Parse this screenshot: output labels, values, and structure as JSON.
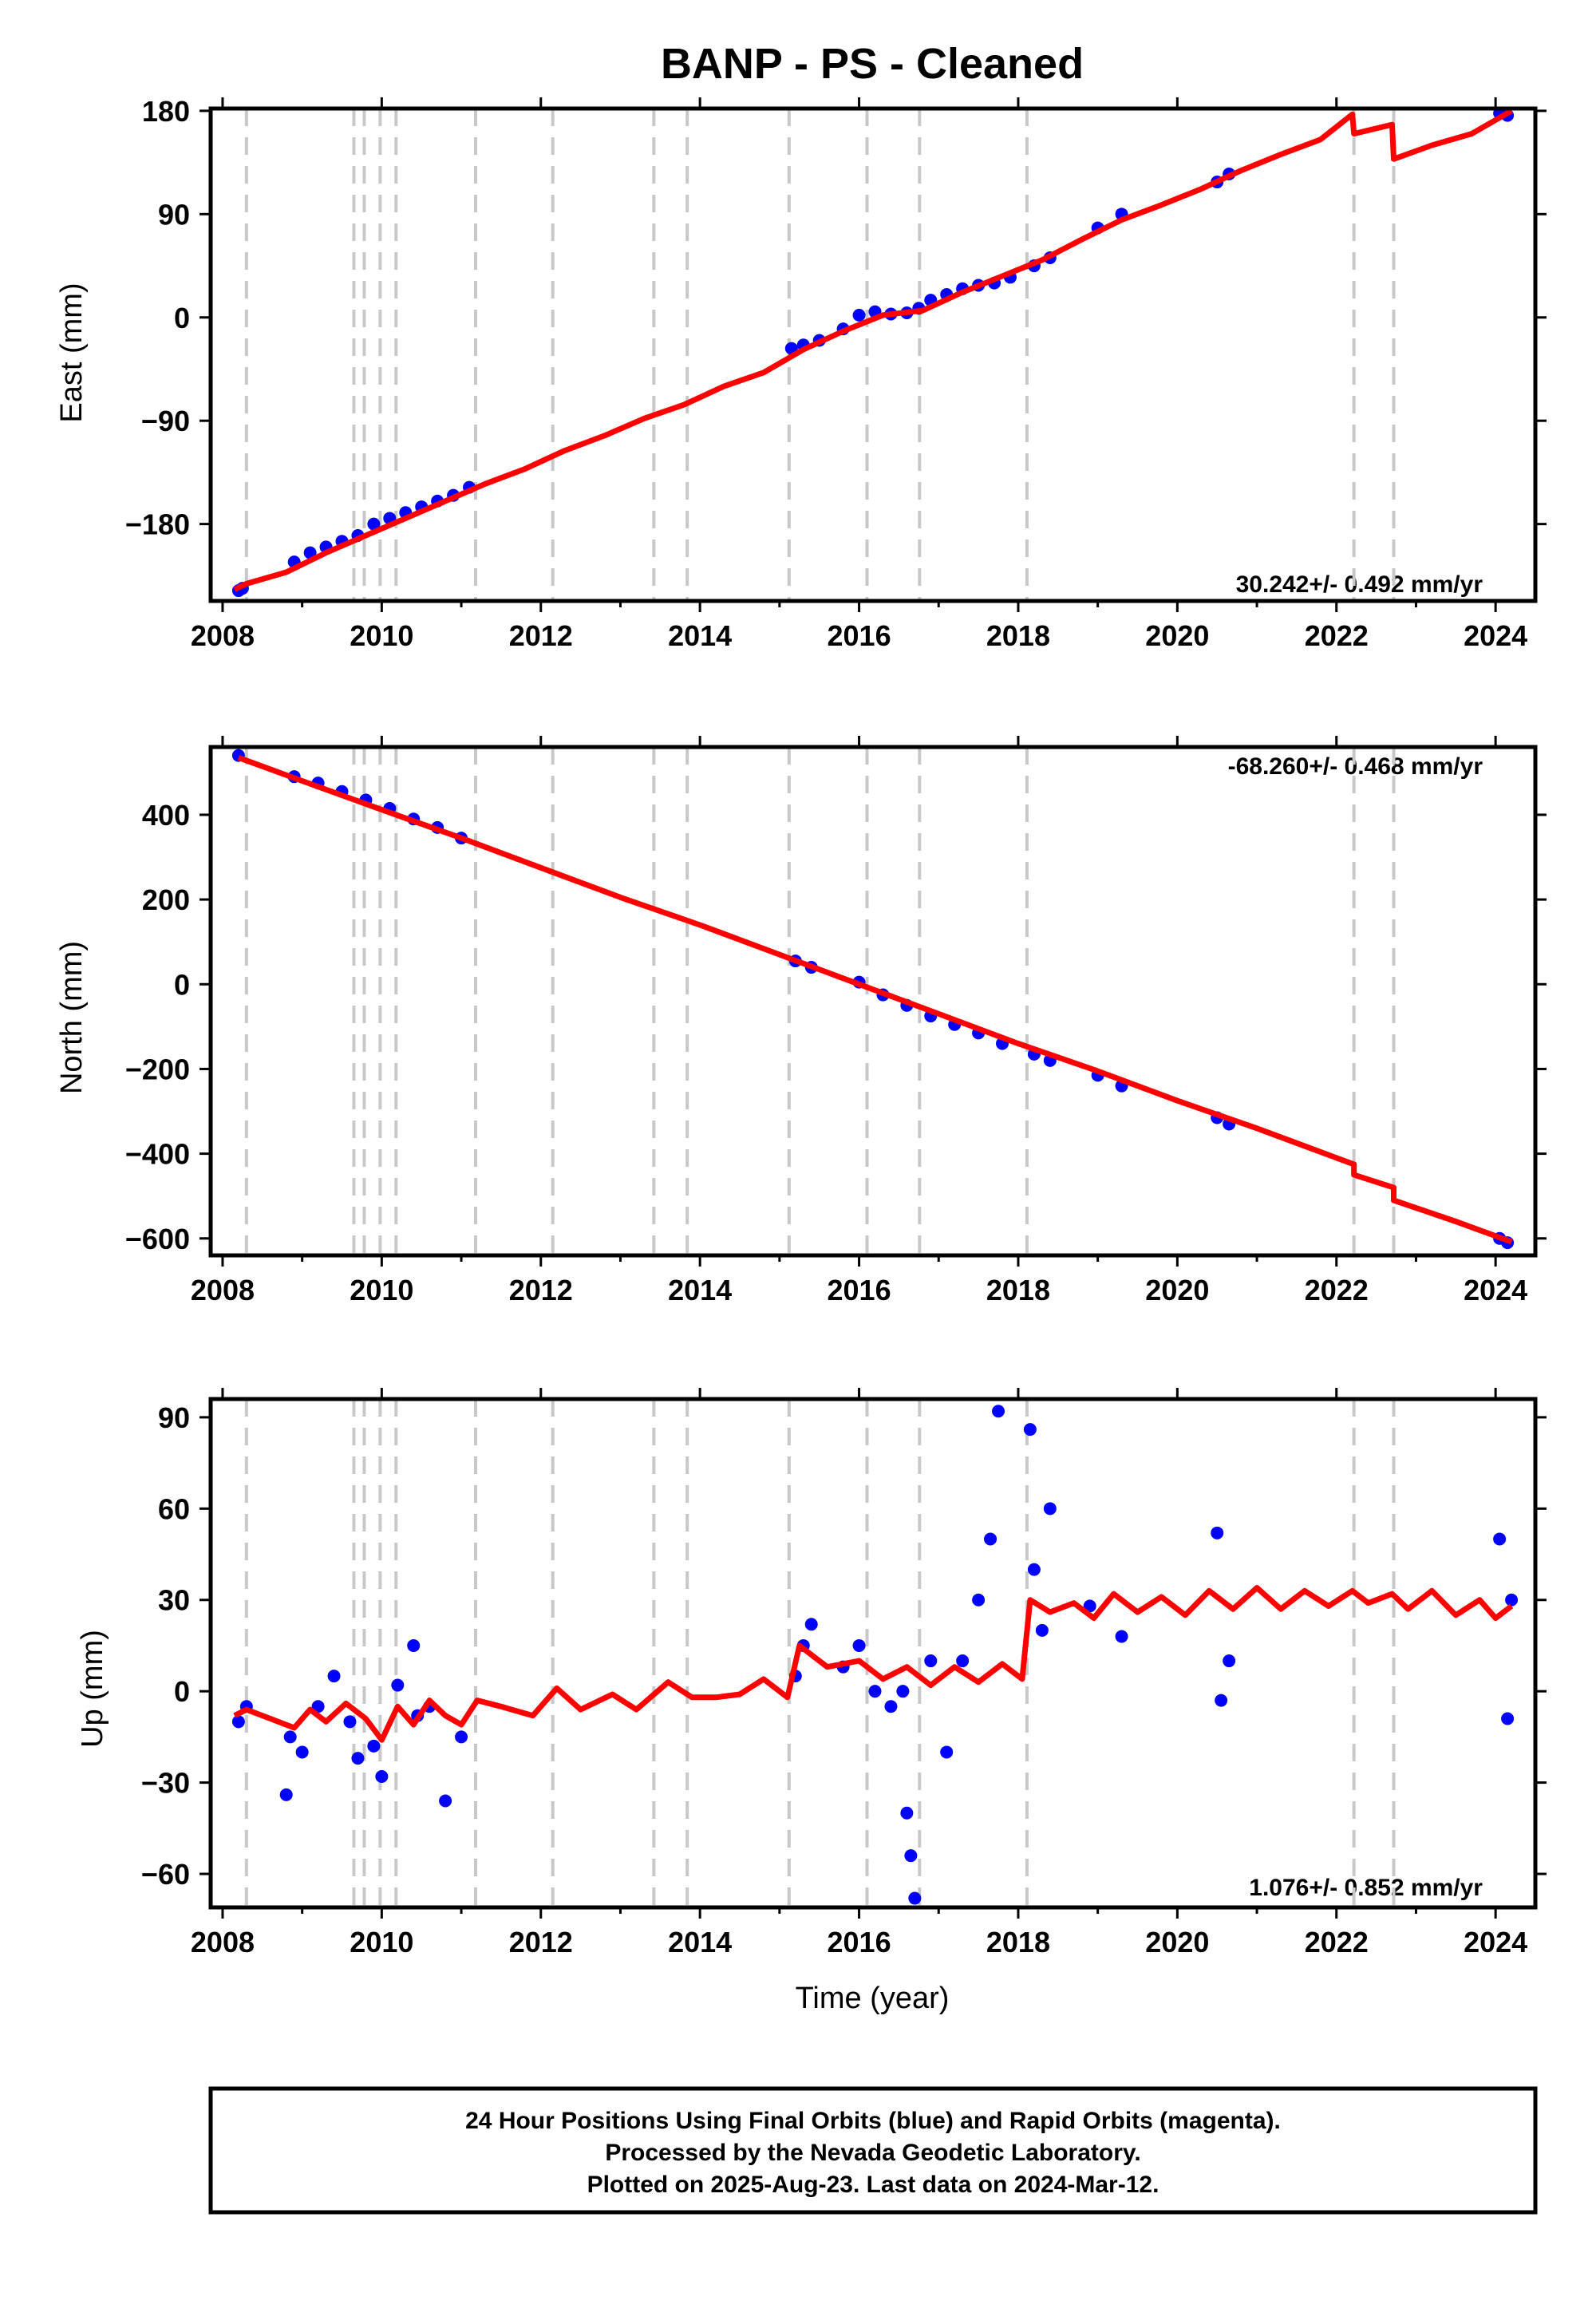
{
  "title": "BANP  - PS - Cleaned",
  "time_axis_label": "Time (year)",
  "footer": {
    "line1": "24 Hour Positions Using Final Orbits (blue) and Rapid Orbits (magenta).",
    "line2": "Processed by the Nevada Geodetic Laboratory.",
    "line3": "Plotted on 2025-Aug-23. Last data on 2024-Mar-12."
  },
  "colors": {
    "data": "#0000ff",
    "fit": "#ff0000",
    "breaks": "#c8c8c8"
  },
  "chart_data": [
    {
      "type": "scatter",
      "ylabel": "East (mm)",
      "rate_text": "30.242+/- 0.492 mm/yr",
      "xlim": [
        2007.85,
        2024.5
      ],
      "ylim": [
        -247,
        182
      ],
      "xticks": [
        2008,
        2010,
        2012,
        2014,
        2016,
        2018,
        2020,
        2022,
        2024
      ],
      "yticks": [
        -180,
        -90,
        0,
        90,
        180
      ],
      "ytick_labels": [
        "−180",
        "−90",
        "0",
        "90",
        "180"
      ],
      "breaks": [
        2008.3,
        2009.65,
        2009.78,
        2009.98,
        2010.18,
        2011.18,
        2012.15,
        2013.42,
        2013.84,
        2015.12,
        2016.1,
        2016.76,
        2018.11,
        2022.22,
        2022.72
      ],
      "series": [
        {
          "kind": "scatter",
          "x": [
            2008.2,
            2008.25,
            2008.9,
            2009.1,
            2009.3,
            2009.5,
            2009.7,
            2009.9,
            2010.1,
            2010.3,
            2010.5,
            2010.7,
            2010.9,
            2011.1,
            2015.15,
            2015.3,
            2015.5,
            2015.8,
            2016.0,
            2016.2,
            2016.4,
            2016.6,
            2016.75,
            2016.9,
            2017.1,
            2017.3,
            2017.5,
            2017.7,
            2017.9,
            2018.2,
            2018.4,
            2019.0,
            2019.3,
            2020.5,
            2020.65,
            2024.05,
            2024.15
          ],
          "y": [
            -238,
            -236,
            -213,
            -205,
            -200,
            -195,
            -190,
            -180,
            -175,
            -170,
            -165,
            -160,
            -155,
            -148,
            -27,
            -24,
            -20,
            -10,
            2,
            5,
            3,
            4,
            8,
            15,
            20,
            25,
            28,
            30,
            35,
            45,
            52,
            78,
            90,
            118,
            125,
            178,
            176
          ]
        },
        {
          "kind": "line",
          "x": [
            2008.15,
            2008.3,
            2008.8,
            2009.3,
            2009.8,
            2010.3,
            2010.8,
            2011.3,
            2011.8,
            2012.3,
            2012.8,
            2013.3,
            2013.8,
            2014.3,
            2014.8,
            2015.3,
            2015.8,
            2016.3,
            2016.8,
            2017.3,
            2017.8,
            2018.3,
            2018.8,
            2019.3,
            2019.8,
            2020.3,
            2020.8,
            2021.3,
            2021.8,
            2022.2,
            2022.22,
            2022.7,
            2022.72,
            2023.2,
            2023.7,
            2024.2
          ],
          "y": [
            -237,
            -232,
            -222,
            -205,
            -190,
            -175,
            -160,
            -145,
            -132,
            -116,
            -103,
            -88,
            -76,
            -60,
            -48,
            -28,
            -12,
            2,
            6,
            22,
            36,
            50,
            68,
            85,
            98,
            112,
            128,
            142,
            155,
            177,
            160,
            168,
            138,
            150,
            160,
            180
          ]
        }
      ]
    },
    {
      "type": "scatter",
      "ylabel": "North (mm)",
      "rate_text": "-68.260+/- 0.468 mm/yr",
      "xlim": [
        2007.85,
        2024.5
      ],
      "ylim": [
        -640,
        560
      ],
      "xticks": [
        2008,
        2010,
        2012,
        2014,
        2016,
        2018,
        2020,
        2022,
        2024
      ],
      "yticks": [
        -600,
        -400,
        -200,
        0,
        200,
        400
      ],
      "ytick_labels": [
        "−600",
        "−400",
        "−200",
        "0",
        "200",
        "400"
      ],
      "breaks": [
        2008.3,
        2009.65,
        2009.78,
        2009.98,
        2010.18,
        2011.18,
        2012.15,
        2013.42,
        2013.84,
        2015.12,
        2016.1,
        2016.76,
        2018.11,
        2022.22,
        2022.72
      ],
      "series": [
        {
          "kind": "scatter",
          "x": [
            2008.2,
            2008.9,
            2009.2,
            2009.5,
            2009.8,
            2010.1,
            2010.4,
            2010.7,
            2011.0,
            2015.2,
            2015.4,
            2016.0,
            2016.3,
            2016.6,
            2016.9,
            2017.2,
            2017.5,
            2017.8,
            2018.2,
            2018.4,
            2019.0,
            2019.3,
            2020.5,
            2020.65,
            2024.05,
            2024.15
          ],
          "y": [
            540,
            490,
            475,
            455,
            435,
            415,
            390,
            370,
            345,
            55,
            40,
            5,
            -25,
            -50,
            -75,
            -95,
            -115,
            -140,
            -165,
            -180,
            -215,
            -240,
            -315,
            -330,
            -600,
            -610
          ]
        },
        {
          "kind": "line",
          "x": [
            2008.2,
            2009.0,
            2010.0,
            2011.0,
            2012.0,
            2013.0,
            2014.0,
            2015.0,
            2016.0,
            2017.0,
            2018.0,
            2019.0,
            2020.0,
            2021.0,
            2022.0,
            2022.22,
            2022.22,
            2022.72,
            2022.72,
            2023.5,
            2024.2
          ],
          "y": [
            535,
            480,
            412,
            345,
            275,
            205,
            140,
            70,
            0,
            -70,
            -140,
            -205,
            -275,
            -340,
            -410,
            -425,
            -450,
            -480,
            -510,
            -560,
            -608
          ]
        }
      ]
    },
    {
      "type": "scatter",
      "ylabel": "Up (mm)",
      "rate_text": "1.076+/- 0.852 mm/yr",
      "xlim": [
        2007.85,
        2024.5
      ],
      "ylim": [
        -71,
        96
      ],
      "xticks": [
        2008,
        2010,
        2012,
        2014,
        2016,
        2018,
        2020,
        2022,
        2024
      ],
      "yticks": [
        -60,
        -30,
        0,
        30,
        60,
        90
      ],
      "ytick_labels": [
        "−60",
        "−30",
        "0",
        "30",
        "60",
        "90"
      ],
      "breaks": [
        2008.3,
        2009.65,
        2009.78,
        2009.98,
        2010.18,
        2011.18,
        2012.15,
        2013.42,
        2013.84,
        2015.12,
        2016.1,
        2016.76,
        2018.11,
        2022.22,
        2022.72
      ],
      "series": [
        {
          "kind": "scatter",
          "x": [
            2008.2,
            2008.3,
            2008.8,
            2008.85,
            2009.0,
            2009.2,
            2009.4,
            2009.6,
            2009.7,
            2009.9,
            2010.0,
            2010.2,
            2010.4,
            2010.45,
            2010.6,
            2010.8,
            2011.0,
            2015.2,
            2015.3,
            2015.4,
            2015.8,
            2016.0,
            2016.2,
            2016.4,
            2016.55,
            2016.6,
            2016.65,
            2016.7,
            2016.9,
            2017.1,
            2017.3,
            2017.5,
            2017.65,
            2017.75,
            2018.15,
            2018.2,
            2018.3,
            2018.4,
            2018.9,
            2019.3,
            2020.5,
            2020.55,
            2020.65,
            2024.05,
            2024.15,
            2024.2
          ],
          "y": [
            -10,
            -5,
            -34,
            -15,
            -20,
            -5,
            5,
            -10,
            -22,
            -18,
            -28,
            2,
            15,
            -8,
            -5,
            -36,
            -15,
            5,
            15,
            22,
            8,
            15,
            0,
            -5,
            0,
            -40,
            -54,
            -68,
            10,
            -20,
            10,
            30,
            50,
            92,
            86,
            40,
            20,
            60,
            28,
            18,
            52,
            -3,
            10,
            50,
            -9,
            30
          ]
        },
        {
          "kind": "line",
          "x": [
            2008.15,
            2008.3,
            2008.6,
            2008.9,
            2009.1,
            2009.3,
            2009.55,
            2009.8,
            2010.0,
            2010.2,
            2010.4,
            2010.6,
            2010.8,
            2011.0,
            2011.2,
            2011.5,
            2011.9,
            2012.2,
            2012.5,
            2012.9,
            2013.2,
            2013.6,
            2013.9,
            2014.2,
            2014.5,
            2014.8,
            2015.1,
            2015.25,
            2015.6,
            2016.0,
            2016.3,
            2016.6,
            2016.9,
            2017.2,
            2017.5,
            2017.8,
            2018.05,
            2018.15,
            2018.4,
            2018.7,
            2018.95,
            2019.2,
            2019.5,
            2019.8,
            2020.1,
            2020.4,
            2020.7,
            2021.0,
            2021.3,
            2021.6,
            2021.9,
            2022.2,
            2022.4,
            2022.7,
            2022.9,
            2023.2,
            2023.5,
            2023.8,
            2024.0,
            2024.2
          ],
          "y": [
            -8,
            -6,
            -9,
            -12,
            -6,
            -10,
            -4,
            -9,
            -16,
            -5,
            -11,
            -3,
            -8,
            -11,
            -3,
            -5,
            -8,
            1,
            -6,
            -1,
            -6,
            3,
            -2,
            -2,
            -1,
            4,
            -2,
            15,
            8,
            10,
            4,
            8,
            2,
            8,
            3,
            9,
            4,
            30,
            26,
            29,
            24,
            32,
            26,
            31,
            25,
            33,
            27,
            34,
            27,
            33,
            28,
            33,
            29,
            32,
            27,
            33,
            25,
            30,
            24,
            28
          ]
        }
      ]
    }
  ]
}
